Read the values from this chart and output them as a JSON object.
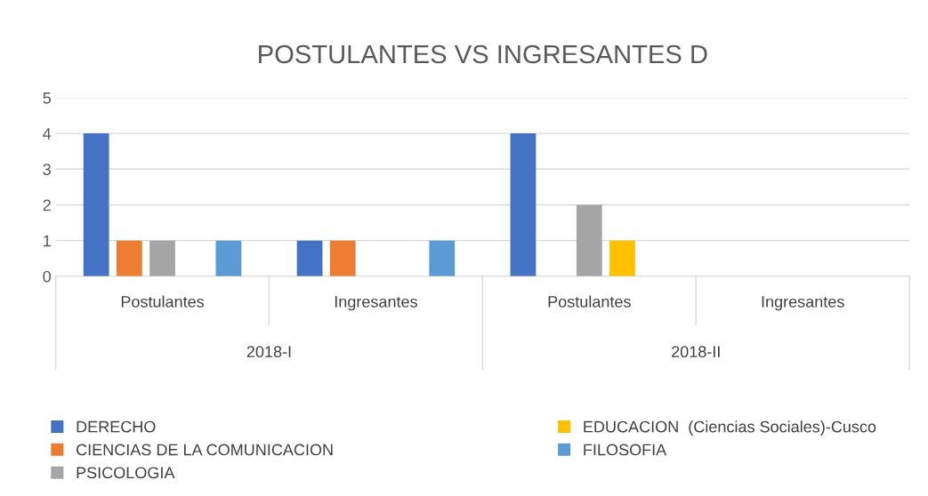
{
  "chart_data": {
    "type": "bar",
    "title": "POSTULANTES VS INGRESANTES D",
    "categories": [
      "Postulantes",
      "Ingresantes",
      "Postulantes",
      "Ingresantes"
    ],
    "annotations": [
      "2018-I",
      "2018-II"
    ],
    "series": [
      {
        "name": "DERECHO",
        "color": "#4472c4",
        "values": [
          4,
          1,
          4,
          0
        ]
      },
      {
        "name": "CIENCIAS DE LA COMUNICACION",
        "color": "#ed7d31",
        "values": [
          1,
          1,
          0,
          0
        ]
      },
      {
        "name": "PSICOLOGIA",
        "color": "#a5a5a5",
        "values": [
          1,
          0,
          2,
          0
        ]
      },
      {
        "name": "EDUCACION  (Ciencias Sociales)-Cusco",
        "color": "#ffc000",
        "values": [
          0,
          0,
          1,
          0
        ]
      },
      {
        "name": "FILOSOFIA",
        "color": "#5b9bd5",
        "values": [
          1,
          1,
          0,
          0
        ]
      }
    ],
    "ylim": [
      0,
      5
    ],
    "yticks": [
      0,
      1,
      2,
      3,
      4,
      5
    ],
    "grid": "y",
    "legend": "bottom"
  }
}
